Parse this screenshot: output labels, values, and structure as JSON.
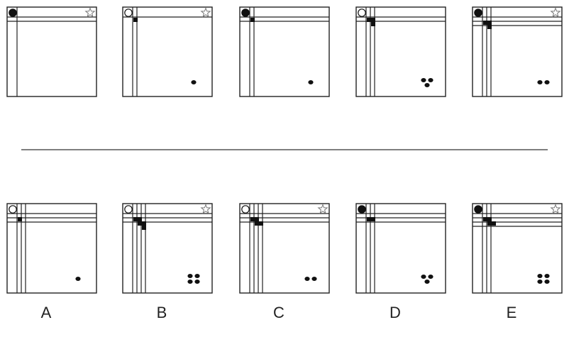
{
  "puzzle": {
    "sequence": [
      {
        "corner_circle": "filled",
        "star": true,
        "v_lines": 1,
        "h_lines": 2,
        "squares": 0,
        "dots": 0,
        "dot_pattern": "none"
      },
      {
        "corner_circle": "open",
        "star": true,
        "v_lines": 2,
        "h_lines": 1,
        "squares": 1,
        "dots": 1,
        "dot_pattern": "single"
      },
      {
        "corner_circle": "filled",
        "star": false,
        "v_lines": 2,
        "h_lines": 2,
        "squares": 1,
        "dots": 1,
        "dot_pattern": "single"
      },
      {
        "corner_circle": "open",
        "star": false,
        "v_lines": 3,
        "h_lines": 2,
        "squares": 3,
        "dots": 3,
        "dot_pattern": "triangle"
      },
      {
        "corner_circle": "filled",
        "star": true,
        "v_lines": 3,
        "h_lines": 3,
        "squares": 3,
        "dots": 2,
        "dot_pattern": "pair"
      }
    ],
    "options": [
      {
        "label": "A",
        "corner_circle": "open",
        "star": false,
        "v_lines": 3,
        "h_lines": 3,
        "squares": 1,
        "dots": 1,
        "dot_pattern": "single"
      },
      {
        "label": "B",
        "corner_circle": "open",
        "star": true,
        "v_lines": 4,
        "h_lines": 3,
        "squares": 5,
        "dots": 4,
        "dot_pattern": "square"
      },
      {
        "label": "C",
        "corner_circle": "open",
        "star": true,
        "v_lines": 4,
        "h_lines": 3,
        "squares": 4,
        "dots": 2,
        "dot_pattern": "pair"
      },
      {
        "label": "D",
        "corner_circle": "filled",
        "star": false,
        "v_lines": 3,
        "h_lines": 3,
        "squares": 2,
        "dots": 3,
        "dot_pattern": "triangle"
      },
      {
        "label": "E",
        "corner_circle": "filled",
        "star": true,
        "v_lines": 3,
        "h_lines": 4,
        "squares": 4,
        "dots": 4,
        "dot_pattern": "square"
      }
    ]
  }
}
